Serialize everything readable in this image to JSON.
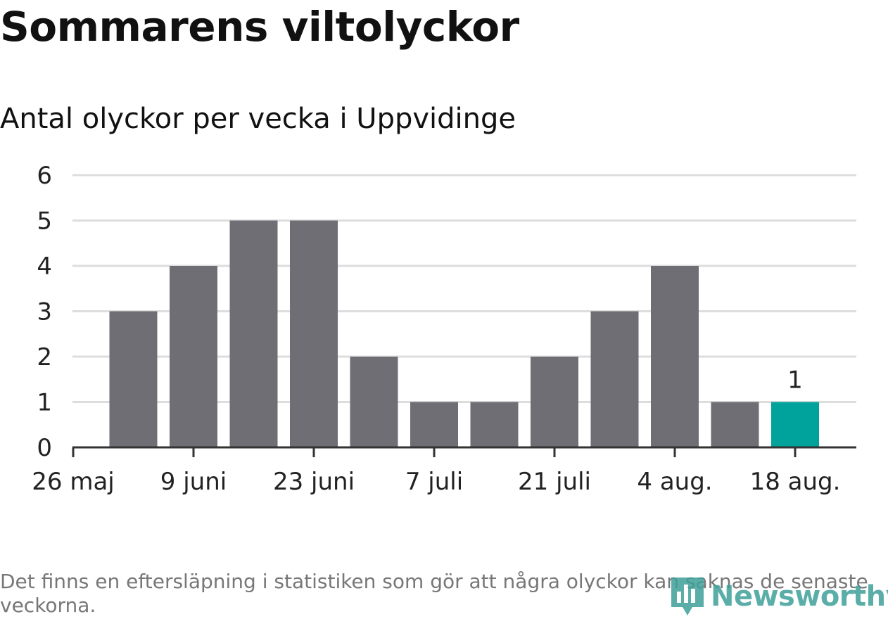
{
  "title": "Sommarens viltolyckor",
  "subtitle": "Antal olyckor per vecka i Uppvidinge",
  "footnote": "Det finns en eftersläpning i statistiken som gör att några olyckor kan saknas de senaste veckorna.",
  "logo": {
    "text": "Newsworthy",
    "icon": "bar-chart-icon"
  },
  "colors": {
    "bar": "#6f6e75",
    "highlight": "#00a39b",
    "grid": "#dddddd",
    "axis": "#333333",
    "text": "#222222"
  },
  "chart_data": {
    "type": "bar",
    "title": "Sommarens viltolyckor",
    "subtitle": "Antal olyckor per vecka i Uppvidinge",
    "xlabel": "",
    "ylabel": "",
    "ylim": [
      0,
      6
    ],
    "yticks": [
      0,
      1,
      2,
      3,
      4,
      5,
      6
    ],
    "grid": true,
    "x_ticks": [
      "26 maj",
      "9 juni",
      "23 juni",
      "7 juli",
      "21 juli",
      "4 aug.",
      "18 aug."
    ],
    "values": [
      3,
      4,
      5,
      5,
      2,
      1,
      1,
      2,
      3,
      4,
      1,
      1
    ],
    "highlight_index": 11,
    "data_labels": [
      {
        "index": 11,
        "text": "1"
      }
    ]
  }
}
